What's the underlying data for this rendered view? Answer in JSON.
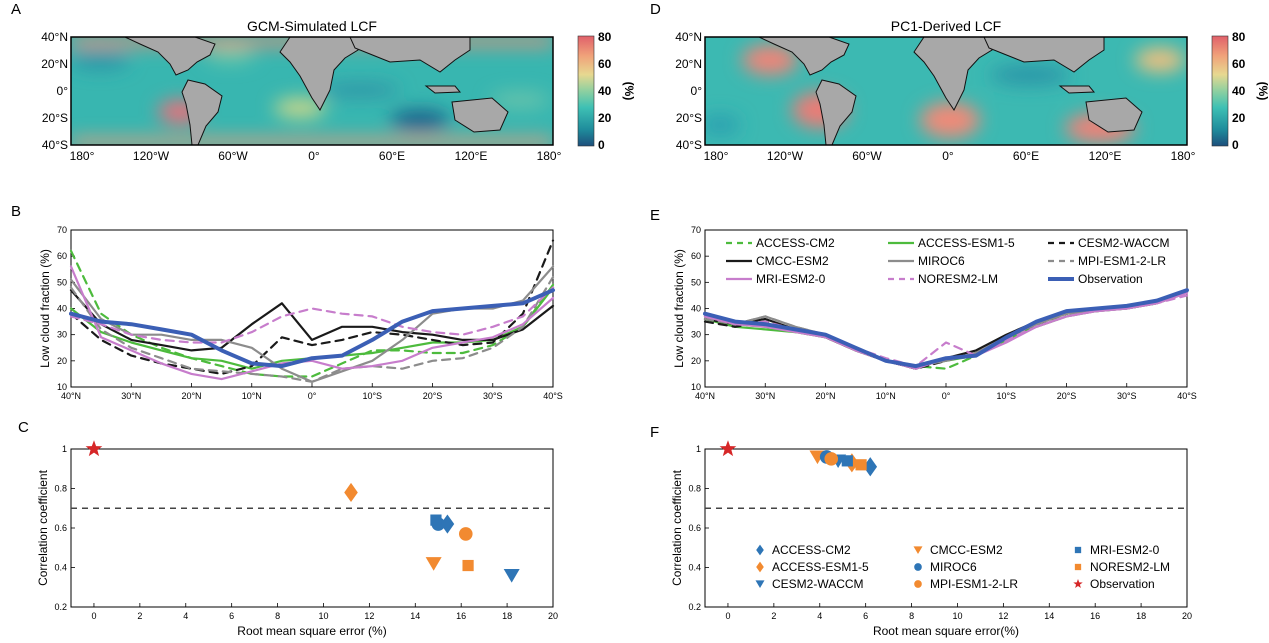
{
  "panel_labels": {
    "A": "A",
    "B": "B",
    "C": "C",
    "D": "D",
    "E": "E",
    "F": "F"
  },
  "colorbar": {
    "ticks": [
      "80",
      "60",
      "40",
      "20",
      "0"
    ],
    "unit": "(%)"
  },
  "chart_data": [
    {
      "id": "A",
      "type": "heatmap",
      "title": "GCM-Simulated LCF",
      "lat_ticks": [
        "40°N",
        "20°N",
        "0°",
        "20°S",
        "40°S"
      ],
      "lon_ticks": [
        "180°",
        "120°W",
        "60°W",
        "0°",
        "60°E",
        "120°E",
        "180°"
      ],
      "colorbar_range": [
        0,
        80
      ],
      "colorbar_unit": "(%)",
      "high_regions": [
        "SE Pacific off South America (~60%)",
        "SE Atlantic off Africa (~45%)",
        "40°N and 40°S margins (~70–80%)"
      ]
    },
    {
      "id": "D",
      "type": "heatmap",
      "title": "PC1-Derived LCF",
      "lat_ticks": [
        "40°N",
        "20°N",
        "0°",
        "20°S",
        "40°S"
      ],
      "lon_ticks": [
        "180°",
        "120°W",
        "60°W",
        "0°",
        "60°E",
        "120°E",
        "180°"
      ],
      "colorbar_range": [
        0,
        80
      ],
      "colorbar_unit": "(%)",
      "high_regions": [
        "NE Pacific off California (~70%)",
        "SE Pacific off Peru (~70%)",
        "SE Atlantic off Namibia (~70%)",
        "SE Indian Ocean off Australia (~70%)"
      ]
    },
    {
      "id": "B",
      "type": "line",
      "xlabel": "",
      "ylabel": "Low cloud fraction (%)",
      "ylim": [
        10,
        70
      ],
      "yticks": [
        "10",
        "20",
        "30",
        "40",
        "50",
        "60",
        "70"
      ],
      "x": [
        40,
        35,
        30,
        25,
        20,
        15,
        10,
        5,
        0,
        -5,
        -10,
        -15,
        -20,
        -25,
        -30,
        -35,
        -40
      ],
      "xticks": [
        "40°N",
        "30°N",
        "20°N",
        "10°N",
        "0°",
        "10°S",
        "20°S",
        "30°S",
        "40°S"
      ],
      "series": [
        {
          "name": "ACCESS-CM2",
          "color": "#4dbb3d",
          "dash": "8,6",
          "values": [
            62,
            38,
            30,
            25,
            21,
            18,
            15,
            14,
            14,
            19,
            24,
            24,
            23,
            23,
            26,
            33,
            49
          ]
        },
        {
          "name": "ACCESS-ESM1-5",
          "color": "#4dbb3d",
          "dash": "",
          "values": [
            40,
            31,
            27,
            24,
            21,
            20,
            17,
            20,
            21,
            22,
            23,
            25,
            27,
            27,
            28,
            33,
            48
          ]
        },
        {
          "name": "CESM2-WACCM",
          "color": "#1a1a1a",
          "dash": "8,6",
          "values": [
            38,
            28,
            22,
            19,
            17,
            15,
            18,
            29,
            26,
            28,
            31,
            30,
            28,
            26,
            27,
            38,
            66
          ]
        },
        {
          "name": "CMCC-ESM2",
          "color": "#1a1a1a",
          "dash": "",
          "values": [
            47,
            34,
            28,
            26,
            24,
            25,
            34,
            42,
            28,
            33,
            33,
            31,
            30,
            28,
            28,
            32,
            41
          ]
        },
        {
          "name": "MIROC6",
          "color": "#8c8c8c",
          "dash": "",
          "values": [
            51,
            36,
            30,
            30,
            28,
            28,
            25,
            17,
            12,
            16,
            20,
            28,
            38,
            40,
            40,
            43,
            56
          ]
        },
        {
          "name": "MPI-ESM1-2-LR",
          "color": "#8c8c8c",
          "dash": "8,6",
          "values": [
            48,
            32,
            25,
            21,
            17,
            16,
            15,
            14,
            12,
            17,
            18,
            17,
            20,
            21,
            25,
            33,
            52
          ]
        },
        {
          "name": "MRI-ESM2-0",
          "color": "#c77dcc",
          "dash": "",
          "values": [
            56,
            29,
            24,
            19,
            15,
            13,
            16,
            19,
            20,
            17,
            18,
            20,
            25,
            27,
            29,
            34,
            44
          ]
        },
        {
          "name": "NORESM2-LM",
          "color": "#c77dcc",
          "dash": "8,6",
          "values": [
            37,
            34,
            30,
            28,
            27,
            27,
            31,
            37,
            40,
            38,
            37,
            33,
            31,
            30,
            33,
            37,
            48
          ]
        },
        {
          "name": "Observation",
          "color": "#3b5fb5",
          "dash": "",
          "values": [
            38,
            35,
            34,
            32,
            30,
            24,
            19,
            18,
            21,
            22,
            28,
            35,
            39,
            40,
            41,
            42,
            47
          ]
        }
      ]
    },
    {
      "id": "E",
      "type": "line",
      "xlabel": "",
      "ylabel": "Low cloud fraction (%)",
      "ylim": [
        10,
        70
      ],
      "yticks": [
        "10",
        "20",
        "30",
        "40",
        "50",
        "60",
        "70"
      ],
      "x": [
        40,
        35,
        30,
        25,
        20,
        15,
        10,
        5,
        0,
        -5,
        -10,
        -15,
        -20,
        -25,
        -30,
        -35,
        -40
      ],
      "xticks": [
        "40°N",
        "30°N",
        "20°N",
        "10°N",
        "0°",
        "10°S",
        "20°S",
        "30°S",
        "40°S"
      ],
      "legend": {
        "placement": "top",
        "columns": 3
      },
      "series": [
        {
          "name": "ACCESS-CM2",
          "color": "#4dbb3d",
          "dash": "8,6",
          "values": [
            36,
            34,
            33,
            31,
            29,
            24,
            20,
            18,
            17,
            22,
            28,
            34,
            38,
            39,
            40,
            42,
            47
          ]
        },
        {
          "name": "ACCESS-ESM1-5",
          "color": "#4dbb3d",
          "dash": "",
          "values": [
            36,
            33,
            32,
            31,
            29,
            24,
            20,
            18,
            20,
            22,
            28,
            33,
            37,
            39,
            40,
            42,
            47
          ]
        },
        {
          "name": "CESM2-WACCM",
          "color": "#1a1a1a",
          "dash": "8,6",
          "values": [
            35,
            33,
            35,
            32,
            29,
            25,
            20,
            17,
            20,
            23,
            29,
            34,
            38,
            40,
            41,
            43,
            47
          ]
        },
        {
          "name": "CMCC-ESM2",
          "color": "#1a1a1a",
          "dash": "",
          "values": [
            36,
            34,
            36,
            32,
            29,
            24,
            20,
            17,
            21,
            24,
            30,
            35,
            38,
            40,
            41,
            43,
            47
          ]
        },
        {
          "name": "MIROC6",
          "color": "#8c8c8c",
          "dash": "",
          "values": [
            37,
            34,
            37,
            33,
            30,
            25,
            20,
            18,
            20,
            23,
            29,
            34,
            38,
            39,
            40,
            42,
            46
          ]
        },
        {
          "name": "MPI-ESM1-2-LR",
          "color": "#8c8c8c",
          "dash": "8,6",
          "values": [
            36,
            34,
            37,
            33,
            30,
            24,
            20,
            18,
            20,
            23,
            29,
            35,
            38,
            40,
            40,
            42,
            46
          ]
        },
        {
          "name": "MRI-ESM2-0",
          "color": "#c77dcc",
          "dash": "",
          "values": [
            37,
            34,
            33,
            31,
            29,
            24,
            20,
            17,
            21,
            22,
            27,
            33,
            37,
            39,
            40,
            42,
            46
          ]
        },
        {
          "name": "NORESM2-LM",
          "color": "#c77dcc",
          "dash": "8,6",
          "values": [
            37,
            34,
            35,
            32,
            29,
            25,
            21,
            18,
            27,
            22,
            28,
            33,
            37,
            39,
            40,
            42,
            45
          ]
        },
        {
          "name": "Observation",
          "color": "#3b5fb5",
          "dash": "",
          "values": [
            38,
            35,
            34,
            32,
            30,
            25,
            20,
            18,
            21,
            22,
            29,
            35,
            39,
            40,
            41,
            43,
            47
          ]
        }
      ]
    },
    {
      "id": "C",
      "type": "scatter",
      "xlabel": "Root mean square error (%)",
      "ylabel": "Correlation coefficient",
      "xlim": [
        -1,
        20
      ],
      "ylim": [
        0.2,
        1
      ],
      "xticks": [
        "0",
        "2",
        "4",
        "6",
        "8",
        "10",
        "12",
        "14",
        "16",
        "18",
        "20"
      ],
      "yticks": [
        "0.2",
        "0.4",
        "0.6",
        "0.8",
        "1"
      ],
      "reference_line": 0.7,
      "series": [
        {
          "name": "ACCESS-CM2",
          "color": "#2e75b6",
          "marker": "diamond",
          "x": 15.4,
          "y": 0.62
        },
        {
          "name": "ACCESS-ESM1-5",
          "color": "#f28a30",
          "marker": "diamond",
          "x": 11.2,
          "y": 0.78
        },
        {
          "name": "CESM2-WACCM",
          "color": "#2e75b6",
          "marker": "triangle-down",
          "x": 18.2,
          "y": 0.36
        },
        {
          "name": "CMCC-ESM2",
          "color": "#f28a30",
          "marker": "triangle-down",
          "x": 14.8,
          "y": 0.42
        },
        {
          "name": "MIROC6",
          "color": "#2e75b6",
          "marker": "circle",
          "x": 15.0,
          "y": 0.62
        },
        {
          "name": "MPI-ESM1-2-LR",
          "color": "#f28a30",
          "marker": "circle",
          "x": 16.2,
          "y": 0.57
        },
        {
          "name": "MRI-ESM2-0",
          "color": "#2e75b6",
          "marker": "square",
          "x": 14.9,
          "y": 0.64
        },
        {
          "name": "NORESM2-LM",
          "color": "#f28a30",
          "marker": "square",
          "x": 16.3,
          "y": 0.41
        },
        {
          "name": "Observation",
          "color": "#d62728",
          "marker": "star",
          "x": 0,
          "y": 1.0
        }
      ]
    },
    {
      "id": "F",
      "type": "scatter",
      "xlabel": "Root mean square error(%)",
      "ylabel": "Correlation coefficient",
      "xlim": [
        -1,
        20
      ],
      "ylim": [
        0.2,
        1
      ],
      "xticks": [
        "0",
        "2",
        "4",
        "6",
        "8",
        "10",
        "12",
        "14",
        "16",
        "18",
        "20"
      ],
      "yticks": [
        "0.2",
        "0.4",
        "0.6",
        "0.8",
        "1"
      ],
      "reference_line": 0.7,
      "legend": {
        "placement": "bottom",
        "columns": 3
      },
      "series": [
        {
          "name": "ACCESS-CM2",
          "color": "#2e75b6",
          "marker": "diamond",
          "x": 6.2,
          "y": 0.91
        },
        {
          "name": "ACCESS-ESM1-5",
          "color": "#f28a30",
          "marker": "diamond",
          "x": 5.4,
          "y": 0.93
        },
        {
          "name": "CESM2-WACCM",
          "color": "#2e75b6",
          "marker": "triangle-down",
          "x": 4.8,
          "y": 0.94
        },
        {
          "name": "CMCC-ESM2",
          "color": "#f28a30",
          "marker": "triangle-down",
          "x": 3.9,
          "y": 0.96
        },
        {
          "name": "MIROC6",
          "color": "#2e75b6",
          "marker": "circle",
          "x": 4.3,
          "y": 0.96
        },
        {
          "name": "MPI-ESM1-2-LR",
          "color": "#f28a30",
          "marker": "circle",
          "x": 4.5,
          "y": 0.95
        },
        {
          "name": "MRI-ESM2-0",
          "color": "#2e75b6",
          "marker": "square",
          "x": 5.2,
          "y": 0.94
        },
        {
          "name": "NORESM2-LM",
          "color": "#f28a30",
          "marker": "square",
          "x": 5.8,
          "y": 0.92
        },
        {
          "name": "Observation",
          "color": "#d62728",
          "marker": "star",
          "x": 0,
          "y": 1.0
        }
      ]
    }
  ]
}
